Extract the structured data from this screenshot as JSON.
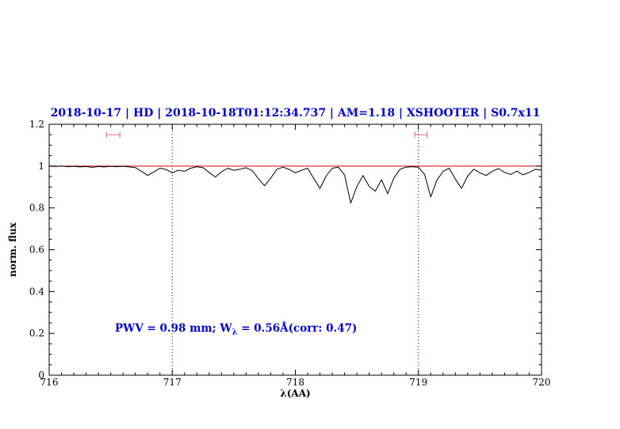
{
  "title": {
    "text": "2018-10-17 | HD | 2018-10-18T01:12:34.737 | AM=1.18 | XSHOOTER | S0.7x11",
    "color": "#0000cd"
  },
  "annotation": {
    "pre": "PWV = 0.98 mm; W",
    "sub": "λ",
    "post": " = 0.56Å(corr: 0.47)",
    "color": "#0000cd"
  },
  "chart_data": {
    "type": "line",
    "title": "2018-10-17 | HD | 2018-10-18T01:12:34.737 | AM=1.18 | XSHOOTER | S0.7x11",
    "xlabel": "λ(AA)",
    "ylabel": "norm. flux",
    "xlim": [
      716,
      720
    ],
    "ylim": [
      0,
      1.2
    ],
    "x_major_ticks": [
      716,
      717,
      718,
      719,
      720
    ],
    "x_tick_labels": [
      "716",
      "717",
      "718",
      "719",
      "720"
    ],
    "x_minor_step": 0.1,
    "y_major_ticks": [
      0,
      0.2,
      0.4,
      0.6,
      0.8,
      1,
      1.2
    ],
    "y_tick_labels": [
      "0",
      "0.2",
      "0.4",
      "0.6",
      "0.8",
      "1",
      "1.2"
    ],
    "y_minor_step": 0.05,
    "grid": false,
    "annotation_text": "PWV = 0.98 mm; Wλ = 0.56Å(corr: 0.47)",
    "continuum": {
      "y": 1.0,
      "color": "#cc0000"
    },
    "vlines": {
      "x": [
        717,
        719
      ],
      "style": "dotted",
      "color": "#000000"
    },
    "markers": [
      {
        "x": 716.52,
        "y": 1.15,
        "halfwidth": 0.055
      },
      {
        "x": 719.02,
        "y": 1.15,
        "halfwidth": 0.05
      }
    ],
    "marker_color": "#dd6666",
    "series": [
      {
        "name": "telluric-spectrum",
        "color": "#000000",
        "x": [
          716.0,
          716.05,
          716.1,
          716.15,
          716.2,
          716.25,
          716.3,
          716.35,
          716.4,
          716.45,
          716.5,
          716.55,
          716.6,
          716.65,
          716.7,
          716.75,
          716.8,
          716.85,
          716.9,
          716.95,
          717.0,
          717.05,
          717.1,
          717.15,
          717.2,
          717.25,
          717.3,
          717.35,
          717.4,
          717.45,
          717.5,
          717.55,
          717.6,
          717.65,
          717.7,
          717.75,
          717.8,
          717.85,
          717.9,
          717.95,
          718.0,
          718.05,
          718.1,
          718.15,
          718.2,
          718.25,
          718.3,
          718.35,
          718.4,
          718.45,
          718.5,
          718.55,
          718.6,
          718.65,
          718.7,
          718.75,
          718.8,
          718.85,
          718.9,
          718.95,
          719.0,
          719.05,
          719.1,
          719.15,
          719.2,
          719.25,
          719.3,
          719.35,
          719.4,
          719.45,
          719.5,
          719.55,
          719.6,
          719.65,
          719.7,
          719.75,
          719.8,
          719.85,
          719.9,
          719.95,
          720.0
        ],
        "y": [
          1.0,
          0.998,
          1.0,
          0.997,
          0.999,
          0.996,
          0.998,
          0.994,
          0.998,
          0.996,
          0.999,
          0.997,
          0.999,
          0.996,
          0.993,
          0.975,
          0.955,
          0.972,
          0.99,
          0.984,
          0.968,
          0.98,
          0.975,
          0.99,
          0.997,
          0.992,
          0.97,
          0.948,
          0.972,
          0.99,
          0.98,
          0.985,
          0.992,
          0.978,
          0.94,
          0.906,
          0.942,
          0.985,
          0.995,
          0.984,
          0.968,
          0.98,
          0.99,
          0.94,
          0.893,
          0.952,
          0.99,
          0.995,
          0.958,
          0.823,
          0.902,
          0.955,
          0.903,
          0.88,
          0.935,
          0.868,
          0.942,
          0.985,
          0.995,
          0.997,
          0.995,
          0.96,
          0.853,
          0.932,
          0.975,
          0.99,
          0.938,
          0.893,
          0.952,
          0.985,
          0.968,
          0.955,
          0.975,
          0.988,
          0.97,
          0.96,
          0.976,
          0.958,
          0.97,
          0.985,
          0.98
        ]
      }
    ]
  }
}
